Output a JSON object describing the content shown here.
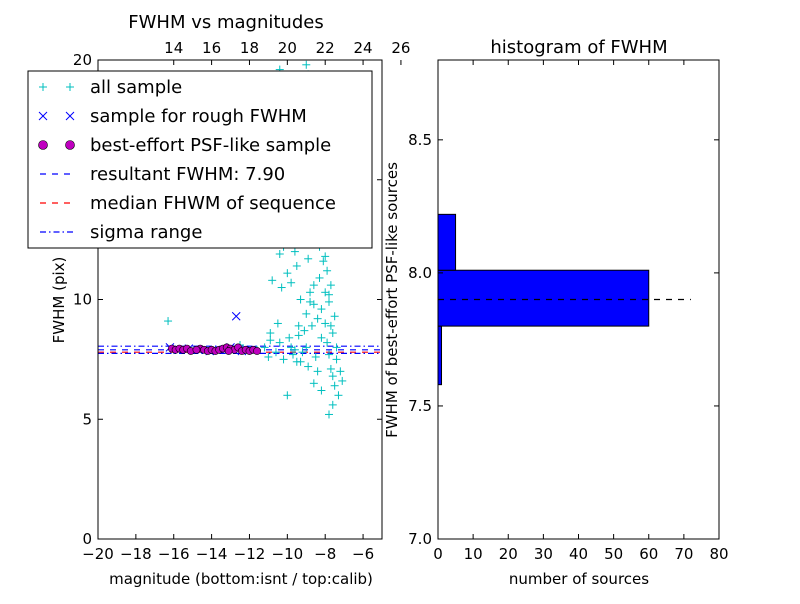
{
  "chart_data": [
    {
      "type": "scatter",
      "title": "FWHM vs magnitudes",
      "xlabel": "magnitude (bottom:isnt / top:calib)",
      "ylabel": "FWHM (pix)",
      "xlim": [
        -20,
        -5
      ],
      "ylim": [
        0,
        20
      ],
      "x_ticks": [
        "−20",
        "−18",
        "−16",
        "−14",
        "−12",
        "−10",
        "−8",
        "−6"
      ],
      "x_tick_values": [
        -20,
        -18,
        -16,
        -14,
        -12,
        -10,
        -8,
        -6
      ],
      "y_ticks": [
        "0",
        "5",
        "10",
        "15",
        "20"
      ],
      "y_tick_values": [
        0,
        5,
        10,
        15,
        20
      ],
      "top_ticks": [
        "14",
        "16",
        "18",
        "20",
        "22",
        "24",
        "26"
      ],
      "top_tick_offset": 30,
      "legend_placement": "upper-left",
      "legend": [
        {
          "label": "all sample",
          "marker": "plus",
          "color": "#00bfbf"
        },
        {
          "label": "sample for rough FWHM",
          "marker": "x",
          "color": "#0000ff"
        },
        {
          "label": "best-effort PSF-like sample",
          "marker": "circle",
          "color": "#bf00bf"
        },
        {
          "label": "resultant FWHM: 7.90",
          "marker": "dashed",
          "color": "#0000ff"
        },
        {
          "label": "median FHWM of sequence",
          "marker": "dashed",
          "color": "#ff0000"
        },
        {
          "label": "sigma range",
          "marker": "dashdot",
          "color": "#0000ff"
        }
      ],
      "series": [
        {
          "name": "all sample",
          "color": "#00bfbf",
          "points": [
            [
              -16.3,
              9.1
            ],
            [
              -12.5,
              8.1
            ],
            [
              -11.6,
              7.9
            ],
            [
              -11.2,
              8.0
            ],
            [
              -10.9,
              8.3
            ],
            [
              -10.6,
              7.8
            ],
            [
              -10.4,
              8.2
            ],
            [
              -10.2,
              7.5
            ],
            [
              -10.0,
              6.0
            ],
            [
              -9.9,
              8.4
            ],
            [
              -9.7,
              7.7
            ],
            [
              -9.6,
              7.9
            ],
            [
              -9.4,
              8.5
            ],
            [
              -9.3,
              7.4
            ],
            [
              -9.2,
              7.8
            ],
            [
              -9.1,
              8.7
            ],
            [
              -9.0,
              8.0
            ],
            [
              -8.9,
              7.2
            ],
            [
              -10.7,
              12.6
            ],
            [
              -10.6,
              13.5
            ],
            [
              -10.4,
              11.9
            ],
            [
              -10.3,
              10.5
            ],
            [
              -10.2,
              12.2
            ],
            [
              -10.1,
              14.1
            ],
            [
              -10.0,
              11.1
            ],
            [
              -9.9,
              13.0
            ],
            [
              -9.8,
              10.7
            ],
            [
              -9.6,
              12.0
            ],
            [
              -9.5,
              11.4
            ],
            [
              -9.3,
              10.0
            ],
            [
              -9.2,
              12.6
            ],
            [
              -9.0,
              9.4
            ],
            [
              -8.9,
              11.7
            ],
            [
              -8.8,
              10.3
            ],
            [
              -8.7,
              8.9
            ],
            [
              -8.6,
              9.8
            ],
            [
              -8.5,
              7.6
            ],
            [
              -8.4,
              13.4
            ],
            [
              -8.3,
              12.2
            ],
            [
              -8.3,
              10.9
            ],
            [
              -8.2,
              9.6
            ],
            [
              -8.2,
              8.4
            ],
            [
              -8.1,
              11.6
            ],
            [
              -8.1,
              14.0
            ],
            [
              -8.0,
              10.3
            ],
            [
              -8.0,
              12.9
            ],
            [
              -8.0,
              9.0
            ],
            [
              -7.9,
              8.2
            ],
            [
              -7.9,
              11.2
            ],
            [
              -7.8,
              7.7
            ],
            [
              -7.8,
              9.9
            ],
            [
              -7.8,
              13.2
            ],
            [
              -7.7,
              7.1
            ],
            [
              -7.7,
              10.6
            ],
            [
              -7.6,
              8.6
            ],
            [
              -7.6,
              6.8
            ],
            [
              -7.5,
              9.3
            ],
            [
              -7.5,
              6.4
            ],
            [
              -7.4,
              7.5
            ],
            [
              -7.4,
              8.0
            ],
            [
              -7.3,
              6.0
            ],
            [
              -7.2,
              7.0
            ],
            [
              -7.8,
              5.2
            ],
            [
              -7.6,
              5.6
            ],
            [
              -7.1,
              6.6
            ],
            [
              -8.2,
              6.2
            ],
            [
              -8.4,
              7.0
            ],
            [
              -8.6,
              6.5
            ],
            [
              -8.0,
              14.8
            ],
            [
              -8.3,
              15.4
            ],
            [
              -8.1,
              16.2
            ],
            [
              -7.9,
              15.9
            ],
            [
              -8.5,
              14.7
            ],
            [
              -9.2,
              16.8
            ],
            [
              -9.4,
              18.3
            ],
            [
              -9.6,
              17.2
            ],
            [
              -8.9,
              19.4
            ],
            [
              -9.0,
              19.8
            ],
            [
              -10.4,
              19.6
            ],
            [
              -8.7,
              15.1
            ],
            [
              -8.8,
              13.8
            ],
            [
              -8.0,
              11.8
            ],
            [
              -8.2,
              12.5
            ],
            [
              -9.1,
              13.1
            ],
            [
              -7.8,
              10.2
            ],
            [
              -7.7,
              8.9
            ],
            [
              -8.4,
              9.2
            ],
            [
              -8.6,
              10.6
            ],
            [
              -8.8,
              9.9
            ],
            [
              -9.4,
              8.9
            ],
            [
              -10.5,
              9.0
            ],
            [
              -10.8,
              10.8
            ],
            [
              -10.9,
              8.6
            ],
            [
              -11.0,
              7.6
            ],
            [
              -9.8,
              8.0
            ],
            [
              -9.5,
              7.4
            ]
          ]
        },
        {
          "name": "sample for rough FWHM",
          "color": "#0000ff",
          "points": [
            [
              -12.7,
              9.3
            ],
            [
              -16.2,
              8.0
            ],
            [
              -15.8,
              7.9
            ],
            [
              -15.2,
              7.95
            ],
            [
              -14.7,
              7.9
            ],
            [
              -14.1,
              7.85
            ],
            [
              -13.6,
              7.9
            ],
            [
              -13.0,
              8.0
            ],
            [
              -12.4,
              7.85
            ],
            [
              -11.9,
              7.9
            ]
          ]
        },
        {
          "name": "best-effort PSF-like sample",
          "color": "#bf00bf",
          "points": [
            [
              -16.1,
              7.95
            ],
            [
              -15.9,
              7.9
            ],
            [
              -15.7,
              7.95
            ],
            [
              -15.5,
              7.9
            ],
            [
              -15.3,
              7.95
            ],
            [
              -15.1,
              7.85
            ],
            [
              -14.6,
              7.95
            ],
            [
              -14.4,
              7.9
            ],
            [
              -14.2,
              7.85
            ],
            [
              -14.0,
              7.9
            ],
            [
              -13.8,
              7.85
            ],
            [
              -13.6,
              7.9
            ],
            [
              -13.4,
              7.95
            ],
            [
              -13.2,
              8.0
            ],
            [
              -13.0,
              7.95
            ],
            [
              -12.8,
              7.9
            ],
            [
              -12.6,
              8.0
            ],
            [
              -12.4,
              7.85
            ],
            [
              -12.2,
              7.9
            ],
            [
              -12.0,
              7.85
            ],
            [
              -11.8,
              7.9
            ],
            [
              -11.6,
              7.85
            ],
            [
              -13.1,
              7.85
            ],
            [
              -14.8,
              7.9
            ]
          ]
        }
      ],
      "hlines": [
        {
          "y": 7.9,
          "style": "dashed",
          "color": "#0000ff"
        },
        {
          "y": 7.8,
          "style": "dashed",
          "color": "#ff0000"
        },
        {
          "y": 8.05,
          "style": "dashdot",
          "color": "#0000ff"
        },
        {
          "y": 7.75,
          "style": "dashdot",
          "color": "#0000ff"
        }
      ]
    },
    {
      "type": "bar",
      "orientation": "horizontal",
      "title": "histogram of FWHM",
      "xlabel": "number of sources",
      "ylabel": "FWHM of best-effort PSF-like sources",
      "xlim": [
        0,
        80
      ],
      "ylim": [
        7.0,
        8.8
      ],
      "x_ticks": [
        "0",
        "10",
        "20",
        "30",
        "40",
        "50",
        "60",
        "70",
        "80"
      ],
      "x_tick_values": [
        0,
        10,
        20,
        30,
        40,
        50,
        60,
        70,
        80
      ],
      "y_ticks": [
        "7.0",
        "7.5",
        "8.0",
        "8.5"
      ],
      "y_tick_values": [
        7.0,
        7.5,
        8.0,
        8.5
      ],
      "color": "#0000ff",
      "bins": [
        {
          "from": 7.58,
          "to": 7.8,
          "count": 1
        },
        {
          "from": 7.8,
          "to": 8.01,
          "count": 60
        },
        {
          "from": 8.01,
          "to": 8.22,
          "count": 5
        }
      ],
      "reference_line": {
        "y": 7.9,
        "style": "dashed",
        "color": "#000000",
        "to": 72
      }
    }
  ]
}
